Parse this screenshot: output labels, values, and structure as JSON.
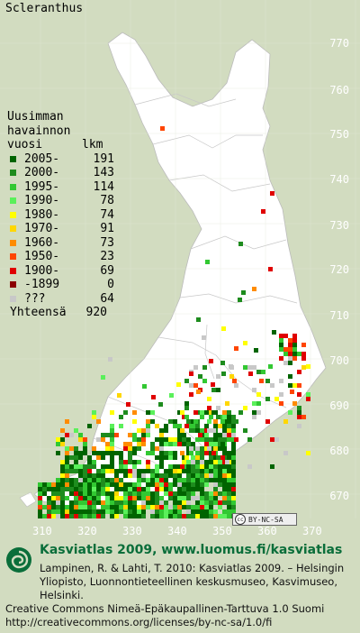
{
  "title": "Scleranthus",
  "legend": {
    "heading": [
      "Uusimman",
      "havainnon",
      "vuosi"
    ],
    "count_header": "lkm",
    "items": [
      {
        "label": "2005-",
        "count": "191",
        "color": "#006400"
      },
      {
        "label": "2000-",
        "count": "143",
        "color": "#1e8c1e"
      },
      {
        "label": "1995-",
        "count": "114",
        "color": "#32c832"
      },
      {
        "label": "1990-",
        "count": "78",
        "color": "#5af05a"
      },
      {
        "label": "1980-",
        "count": "74",
        "color": "#ffff00"
      },
      {
        "label": "1970-",
        "count": "91",
        "color": "#ffd700"
      },
      {
        "label": "1960-",
        "count": "73",
        "color": "#ff8c00"
      },
      {
        "label": "1950-",
        "count": "23",
        "color": "#ff4500"
      },
      {
        "label": "1900-",
        "count": "69",
        "color": "#e00000"
      },
      {
        "label": "-1899",
        "count": "0",
        "color": "#8b0000"
      },
      {
        "label": "???",
        "count": "64",
        "color": "#c8c8c8"
      }
    ],
    "total_label": "Yhteensä",
    "total_count": "920"
  },
  "y_ticks": [
    "770",
    "760",
    "750",
    "740",
    "730",
    "720",
    "710",
    "700",
    "690",
    "680",
    "670"
  ],
  "x_ticks": [
    "310",
    "320",
    "330",
    "340",
    "350",
    "360",
    "370"
  ],
  "license_badge": "BY-NC-SA",
  "footer": {
    "title": "Kasviatlas 2009, www.luomus.fi/kasviatlas",
    "citation": "Lampinen, R. & Lahti, T. 2010: Kasviatlas 2009. – Helsingin Yliopisto, Luonnontieteellinen keskusmuseo, Kasvimuseo, Helsinki.",
    "license_line1": "Creative Commons Nimeä-Epäkaupallinen-Tarttuva 1.0 Suomi",
    "license_line2": "http://creativecommons.org/licenses/by-nc-sa/1.0/fi"
  }
}
